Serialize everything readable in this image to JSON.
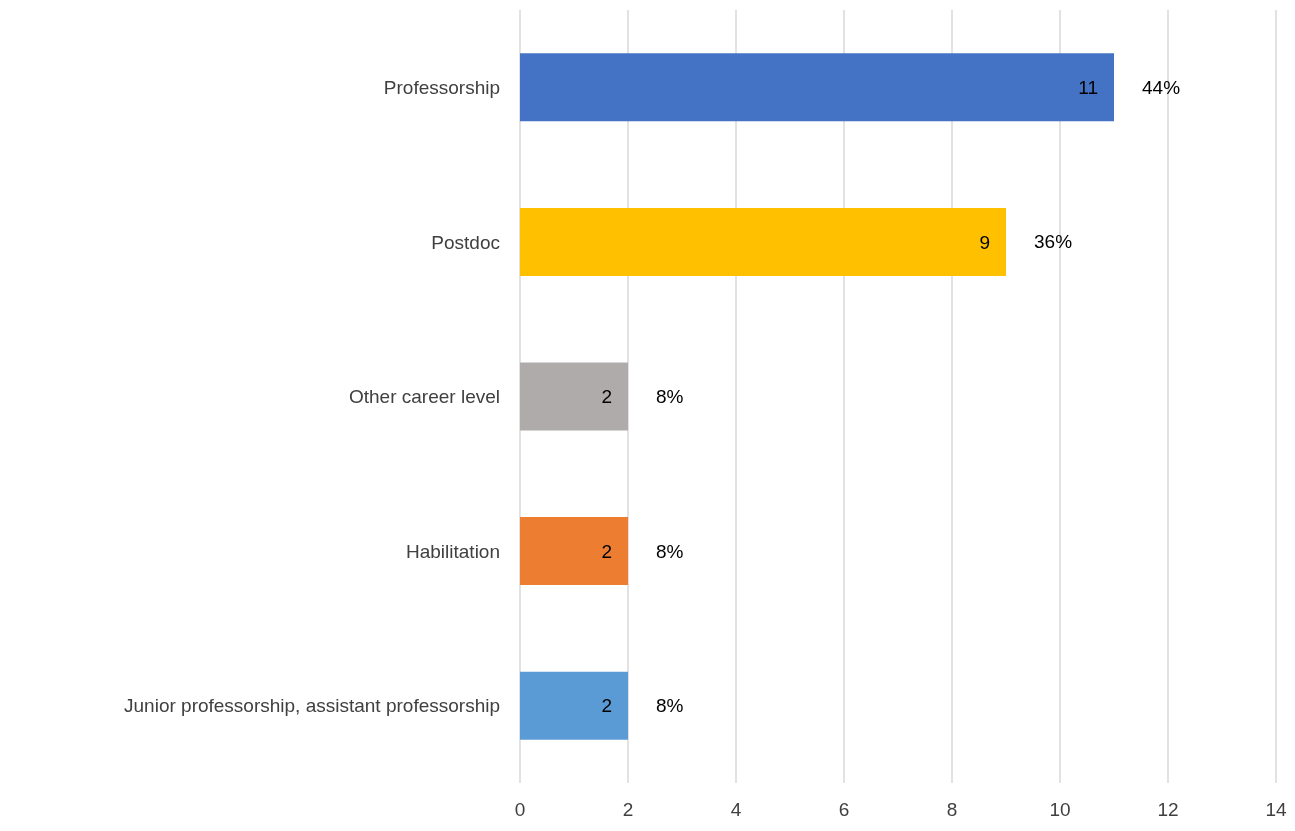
{
  "chart_data": {
    "type": "bar",
    "orientation": "horizontal",
    "categories": [
      "Professorship",
      "Postdoc",
      "Other career level",
      "Habilitation",
      "Junior professorship, assistant professorship"
    ],
    "values": [
      11,
      9,
      2,
      2,
      2
    ],
    "colors": [
      "#4472c4",
      "#ffc000",
      "#afabab",
      "#ed7d31",
      "#5b9bd5"
    ],
    "annotations": [
      {
        "text": "44%",
        "x": 11,
        "y": "Professorship"
      },
      {
        "text": "36%",
        "x": 9,
        "y": "Postdoc"
      },
      {
        "text": "8%",
        "x": 2,
        "y": "Other career level"
      },
      {
        "text": "8%",
        "x": 2,
        "y": "Habilitation"
      },
      {
        "text": "8%",
        "x": 2,
        "y": "Junior professorship, assistant professorship"
      }
    ],
    "data_labels": true,
    "xlim": [
      0,
      14
    ],
    "xticks": [
      0,
      2,
      4,
      6,
      8,
      10,
      12,
      14
    ],
    "grid": "x"
  }
}
